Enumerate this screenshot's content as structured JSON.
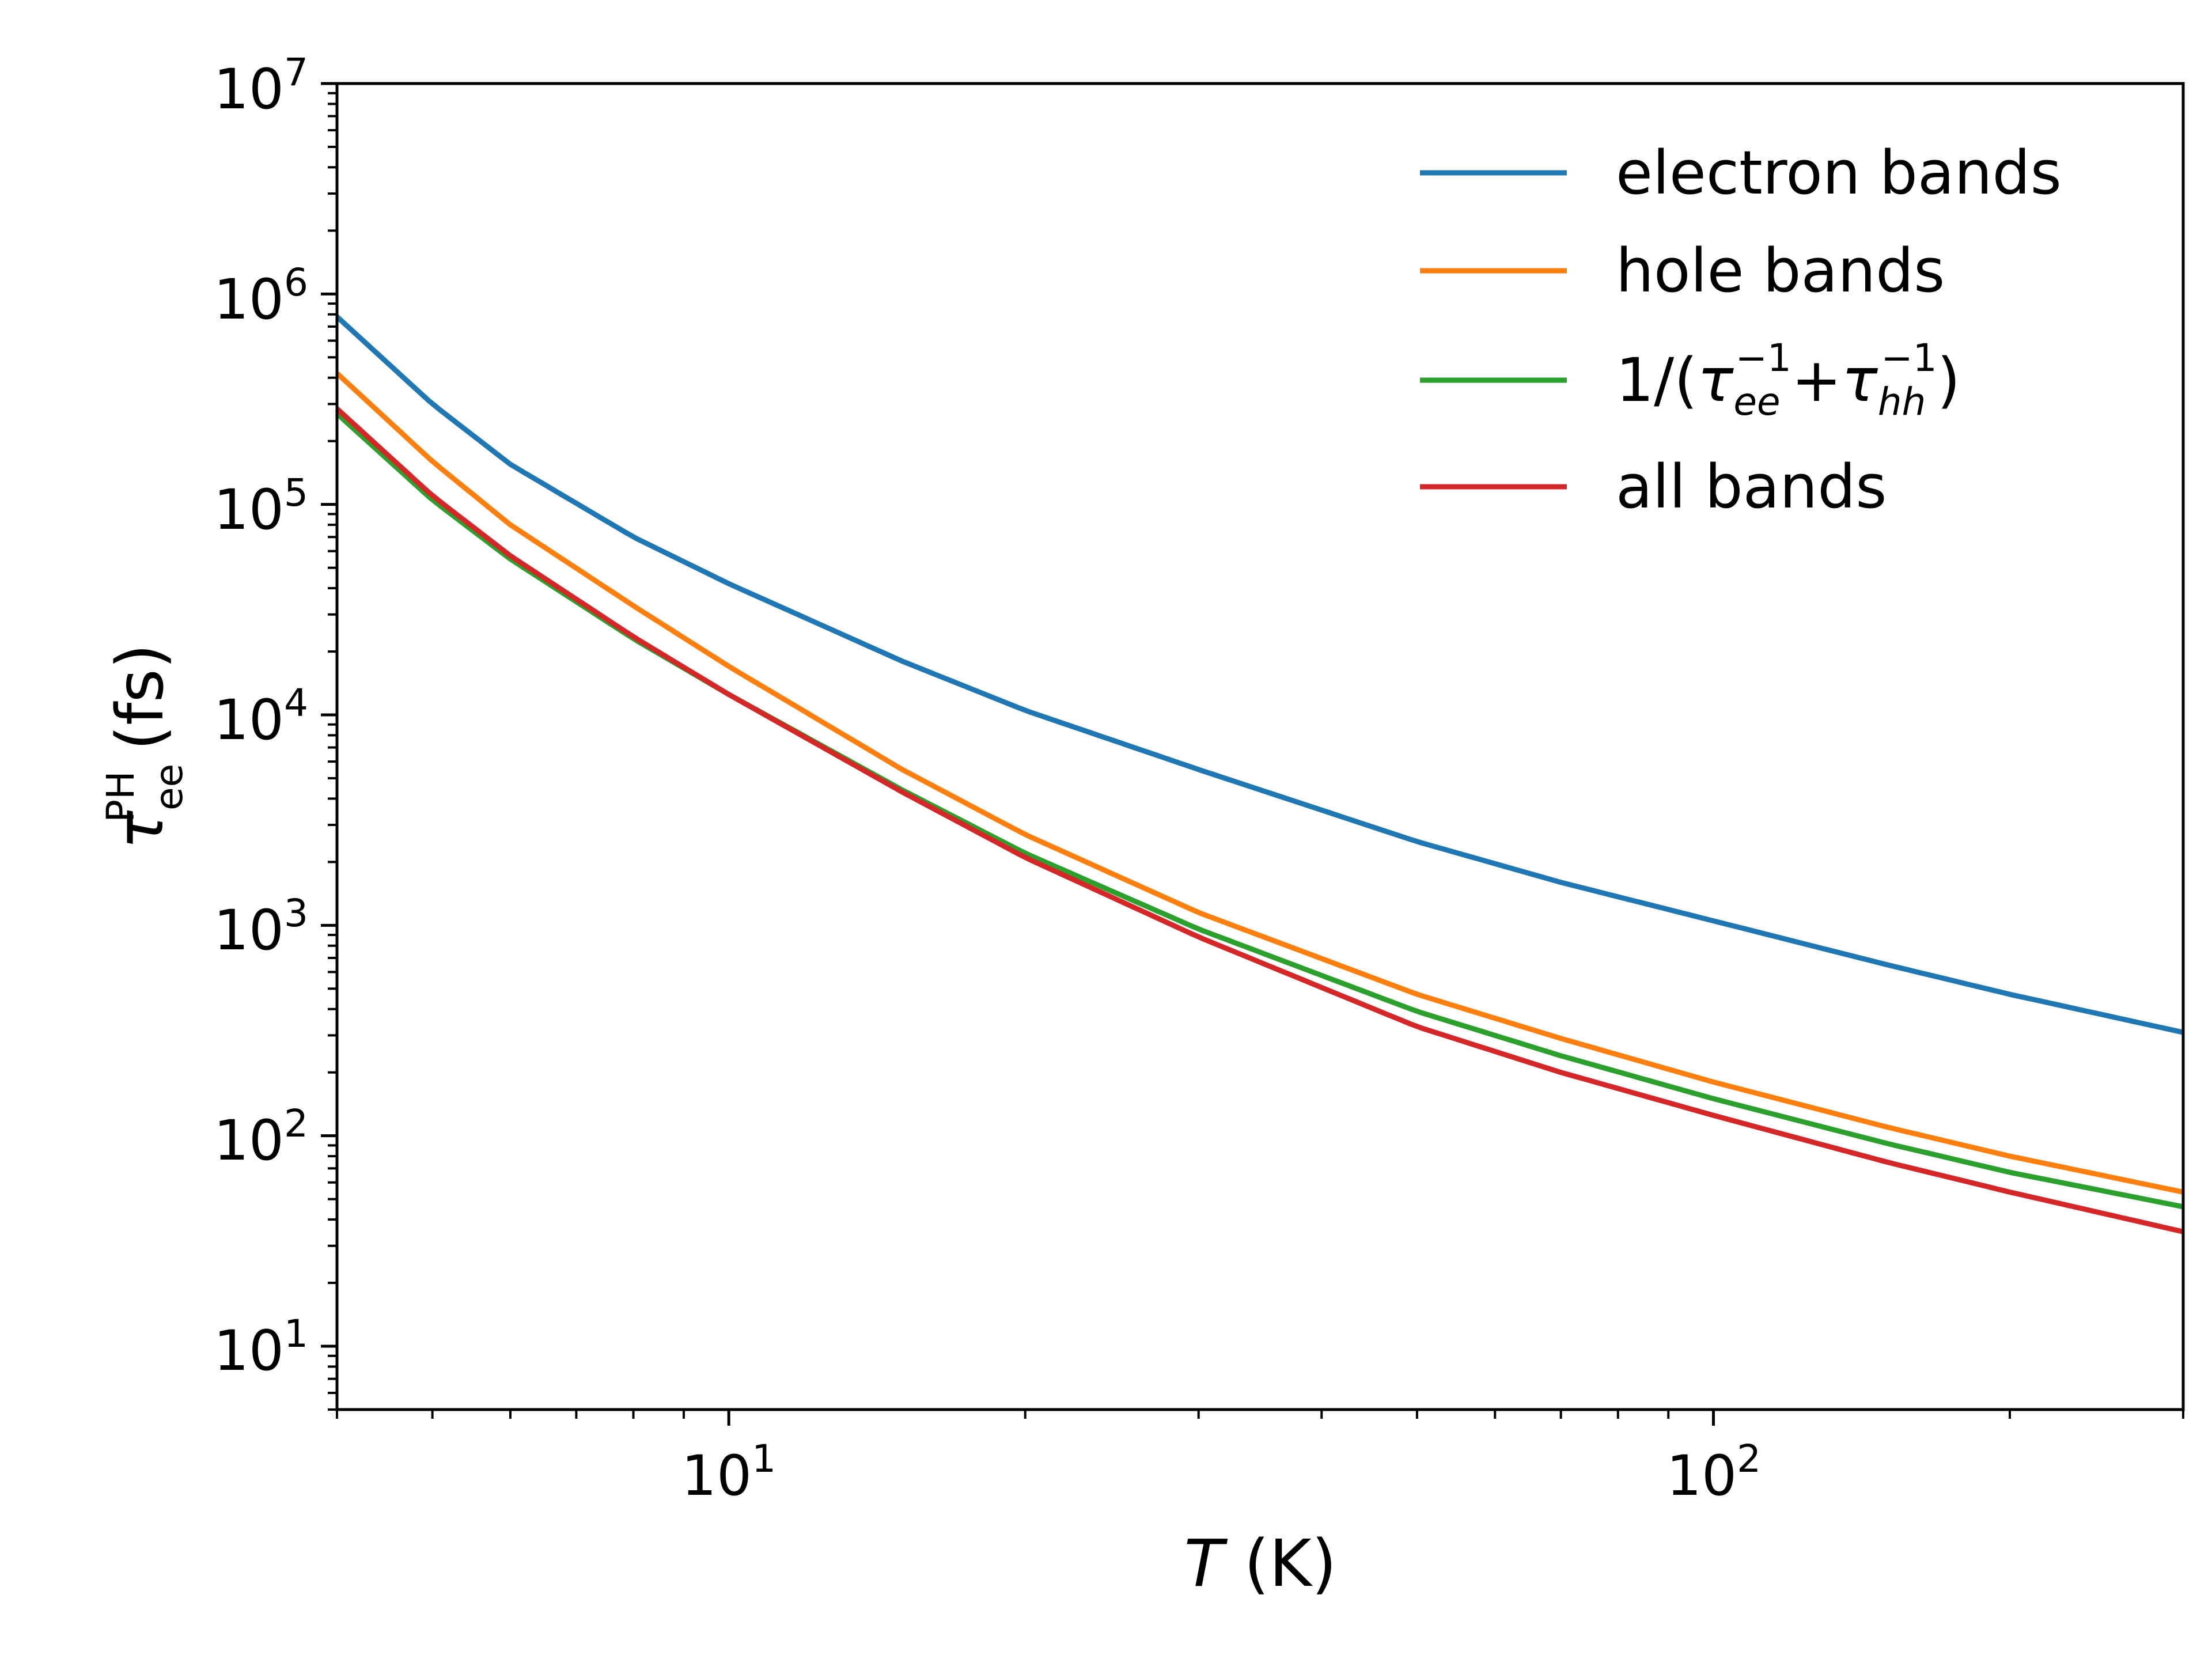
{
  "chart_data": {
    "type": "line",
    "xscale": "log",
    "yscale": "log",
    "xlim": [
      4,
      300
    ],
    "ylim": [
      5,
      10000000
    ],
    "xlabel": {
      "var": "T",
      "unit": " (K)"
    },
    "ylabel": {
      "var": "τ",
      "sub": "ee",
      "sup": "PH",
      "unit": " (fs)"
    },
    "x_ticks": [
      {
        "value": 10,
        "base": "10",
        "exp": "1"
      },
      {
        "value": 100,
        "base": "10",
        "exp": "2"
      }
    ],
    "y_ticks": [
      {
        "value": 10,
        "base": "10",
        "exp": "1"
      },
      {
        "value": 100,
        "base": "10",
        "exp": "2"
      },
      {
        "value": 1000,
        "base": "10",
        "exp": "3"
      },
      {
        "value": 10000,
        "base": "10",
        "exp": "4"
      },
      {
        "value": 100000,
        "base": "10",
        "exp": "5"
      },
      {
        "value": 1000000,
        "base": "10",
        "exp": "6"
      },
      {
        "value": 10000000,
        "base": "10",
        "exp": "7"
      }
    ],
    "legend": {
      "position": "top-right"
    },
    "series": [
      {
        "name": "electron bands",
        "color": "#1f77b4",
        "x": [
          4,
          5,
          6,
          8,
          10,
          15,
          20,
          30,
          50,
          70,
          100,
          150,
          200,
          300
        ],
        "y": [
          780000,
          300000,
          155000,
          70000,
          42000,
          18000,
          10500,
          5500,
          2500,
          1600,
          1050,
          650,
          470,
          310
        ]
      },
      {
        "name": "hole bands",
        "color": "#ff7f0e",
        "x": [
          4,
          5,
          6,
          8,
          10,
          15,
          20,
          30,
          50,
          70,
          100,
          150,
          200,
          300
        ],
        "y": [
          420000,
          160000,
          80000,
          33000,
          17000,
          5500,
          2700,
          1150,
          470,
          290,
          180,
          110,
          80,
          54
        ]
      },
      {
        "name": "1/(τee−1+τhh−1)",
        "legend_parts": {
          "lead": "1/(",
          "tau": "τ",
          "ee_sub": "ee",
          "ee_sup": "−1",
          "plus": "+",
          "hh_sub": "hh",
          "hh_sup": "−1",
          "close": ")"
        },
        "color": "#2ca02c",
        "x": [
          4,
          5,
          6,
          8,
          10,
          15,
          20,
          30,
          50,
          70,
          100,
          150,
          200,
          300
        ],
        "y": [
          270000,
          105000,
          55000,
          23000,
          12500,
          4400,
          2200,
          960,
          390,
          240,
          150,
          92,
          67,
          46
        ]
      },
      {
        "name": "all bands",
        "color": "#d62728",
        "x": [
          4,
          5,
          6,
          8,
          10,
          15,
          20,
          30,
          50,
          70,
          100,
          150,
          200,
          300
        ],
        "y": [
          285000,
          110000,
          57000,
          23500,
          12500,
          4300,
          2100,
          880,
          330,
          200,
          125,
          75,
          54,
          35
        ]
      }
    ]
  }
}
